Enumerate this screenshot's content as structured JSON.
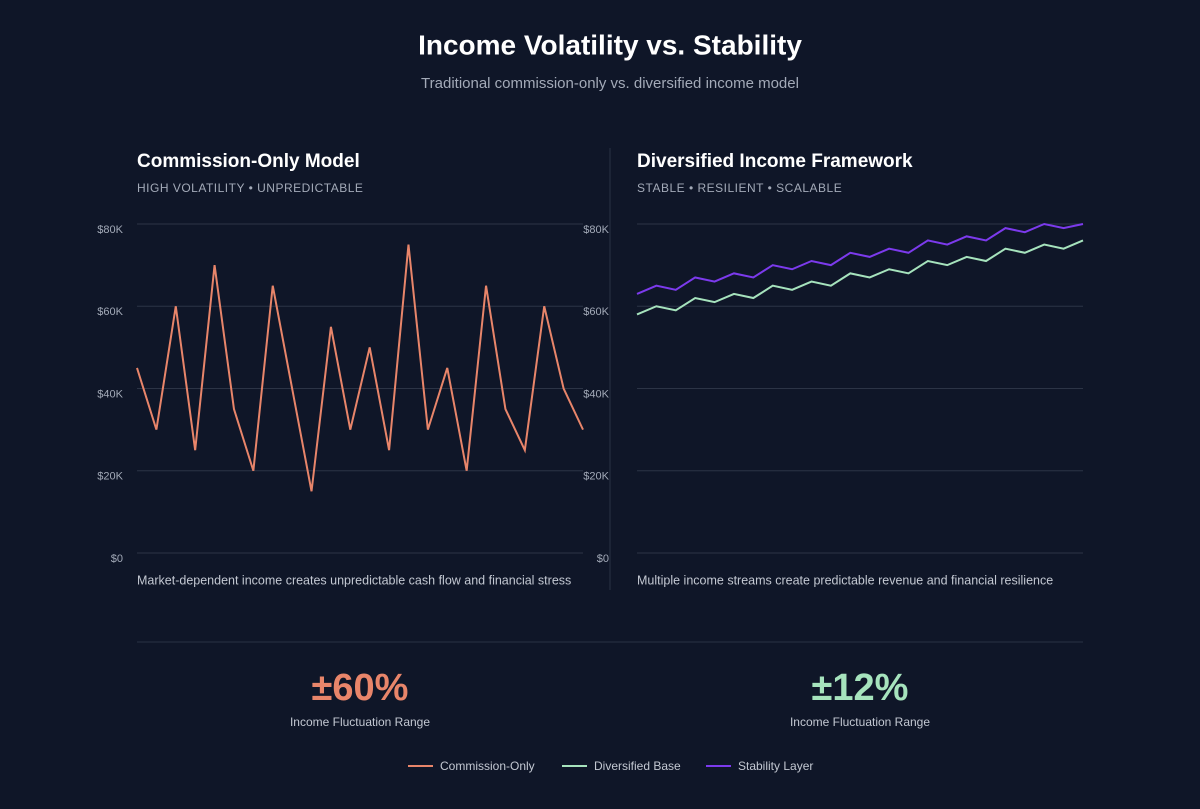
{
  "header": {
    "title": "Income Volatility vs. Stability",
    "subtitle": "Traditional commission-only vs. diversified income model"
  },
  "chart_data": [
    {
      "type": "line",
      "title": "Commission-Only Model",
      "subtitle": "HIGH VOLATILITY • UNPREDICTABLE",
      "caption": "Market-dependent income creates unpredictable cash flow and financial stress",
      "ylim": [
        0,
        80000
      ],
      "yticks": [
        {
          "value": 0,
          "label": "$0"
        },
        {
          "value": 20000,
          "label": "$20K"
        },
        {
          "value": 40000,
          "label": "$40K"
        },
        {
          "value": 60000,
          "label": "$60K"
        },
        {
          "value": 80000,
          "label": "$80K"
        }
      ],
      "grid": true,
      "series": [
        {
          "name": "Commission-Only",
          "color": "#e8856a",
          "values": [
            45000,
            30000,
            60000,
            25000,
            70000,
            35000,
            20000,
            65000,
            40000,
            15000,
            55000,
            30000,
            50000,
            25000,
            75000,
            30000,
            45000,
            20000,
            65000,
            35000,
            25000,
            60000,
            40000,
            30000
          ]
        }
      ]
    },
    {
      "type": "line",
      "title": "Diversified Income Framework",
      "subtitle": "STABLE • RESILIENT • SCALABLE",
      "caption": "Multiple income streams create predictable revenue and financial resilience",
      "ylim": [
        0,
        80000
      ],
      "yticks": [
        {
          "value": 0,
          "label": "$0"
        },
        {
          "value": 20000,
          "label": "$20K"
        },
        {
          "value": 40000,
          "label": "$40K"
        },
        {
          "value": 60000,
          "label": "$60K"
        },
        {
          "value": 80000,
          "label": "$80K"
        }
      ],
      "grid": true,
      "series": [
        {
          "name": "Diversified Base",
          "color": "#a6e3bd",
          "values": [
            58000,
            60000,
            59000,
            62000,
            61000,
            63000,
            62000,
            65000,
            64000,
            66000,
            65000,
            68000,
            67000,
            69000,
            68000,
            71000,
            70000,
            72000,
            71000,
            74000,
            73000,
            75000,
            74000,
            76000
          ]
        },
        {
          "name": "Stability Layer",
          "color": "#7c3aed",
          "values": [
            63000,
            65000,
            64000,
            67000,
            66000,
            68000,
            67000,
            70000,
            69000,
            71000,
            70000,
            73000,
            72000,
            74000,
            73000,
            76000,
            75000,
            77000,
            76000,
            79000,
            78000,
            80000,
            79000,
            80000
          ]
        }
      ]
    }
  ],
  "stats": [
    {
      "value": "±60%",
      "label": "Income Fluctuation Range"
    },
    {
      "value": "±12%",
      "label": "Income Fluctuation Range"
    }
  ]
}
